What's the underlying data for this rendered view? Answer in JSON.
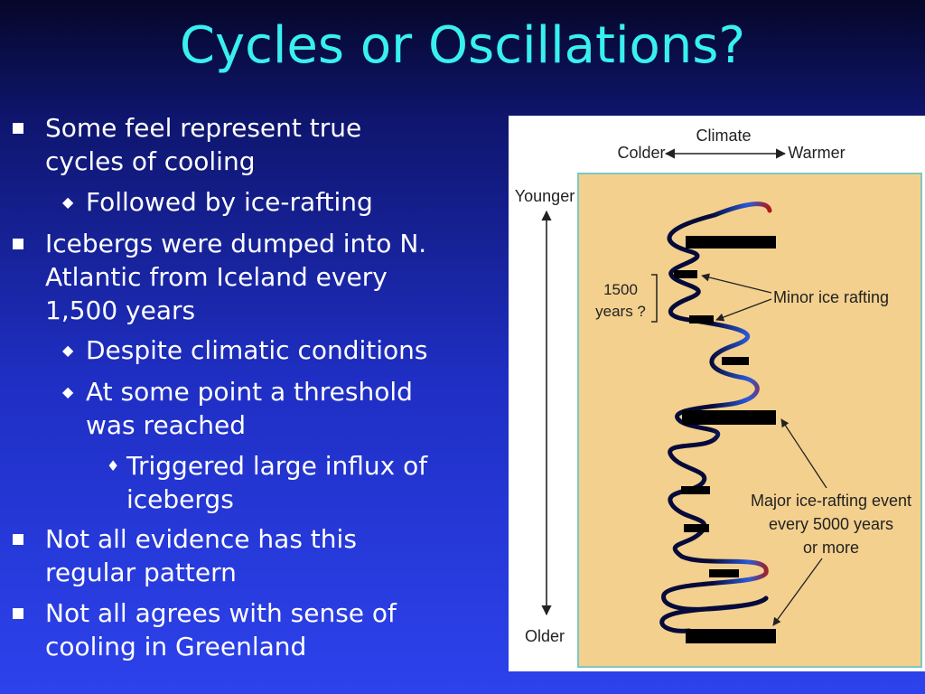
{
  "title": "Cycles or Oscillations?",
  "bullets": [
    {
      "level": 1,
      "lines": [
        "Some feel represent true",
        "cycles of cooling"
      ]
    },
    {
      "level": 2,
      "lines": [
        "Followed by ice-rafting"
      ]
    },
    {
      "level": 1,
      "lines": [
        "Icebergs were dumped into N.",
        "Atlantic from Iceland every",
        "1,500 years"
      ]
    },
    {
      "level": 2,
      "lines": [
        "Despite climatic conditions"
      ]
    },
    {
      "level": 2,
      "lines": [
        "At some point a threshold",
        "was reached"
      ]
    },
    {
      "level": 3,
      "lines": [
        "Triggered large influx of",
        "icebergs"
      ]
    },
    {
      "level": 1,
      "lines": [
        "Not all evidence has this",
        "regular pattern"
      ]
    },
    {
      "level": 1,
      "lines": [
        "Not all agrees with sense of",
        "cooling in Greenland"
      ]
    }
  ],
  "figure": {
    "climate_label": "Climate",
    "colder_label": "Colder",
    "warmer_label": "Warmer",
    "younger_label": "Younger",
    "older_label": "Older",
    "period_label_line1": "1500",
    "period_label_line2": "years ?",
    "minor_label": "Minor ice rafting",
    "major_label_line1": "Major ice-rafting event",
    "major_label_line2": "every 5000 years",
    "major_label_line3": "or more",
    "colors": {
      "panel": "#f3d08e",
      "panel_border": "#7fc7c0",
      "curve_cold": "#050a3a",
      "curve_mid": "#2a5ad8",
      "curve_warm": "#b01818",
      "bars": "#000000"
    }
  }
}
